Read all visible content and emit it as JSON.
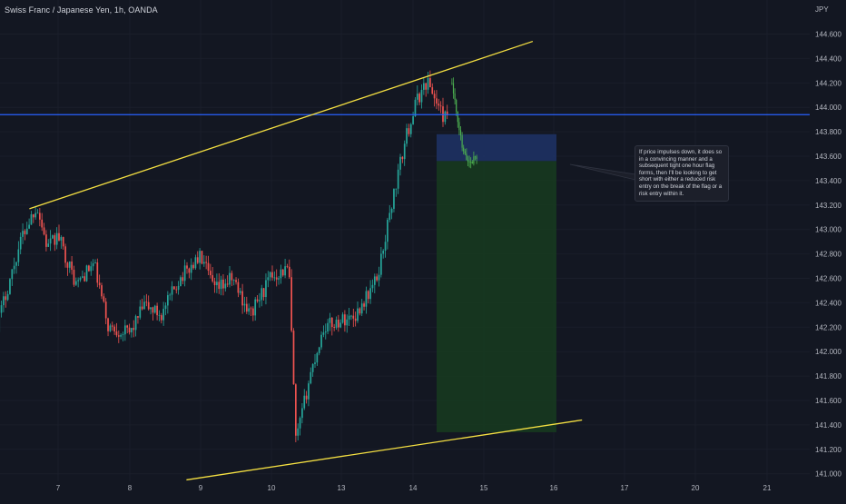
{
  "header": {
    "title": "Swiss Franc / Japanese Yen, 1h, OANDA",
    "currency": "JPY"
  },
  "price_axis": {
    "labels": [
      "144.600",
      "144.400",
      "144.200",
      "144.000",
      "143.800",
      "143.600",
      "143.400",
      "143.200",
      "143.000",
      "142.800",
      "142.600",
      "142.400",
      "142.200",
      "142.000",
      "141.800",
      "141.600",
      "141.400",
      "141.200",
      "141.000"
    ]
  },
  "time_axis": {
    "labels": [
      "7",
      "8",
      "9",
      "10",
      "13",
      "14",
      "15",
      "16",
      "17",
      "20",
      "21"
    ]
  },
  "note": {
    "text": "If price impulses down, it does so in a convincing manner and a subsequent tight one hour flag forms, then I'll be looking to get short with either a reduced risk entry on the break of the flag or a risk entry within it."
  },
  "colors": {
    "background": "#131722",
    "up_candle": "#26a69a",
    "down_candle": "#ef5350",
    "projection_candle": "#4caf50",
    "trendline": "#f5e042",
    "horizontal_level": "#2962ff",
    "stop_zone": "#1e3366",
    "target_zone": "#17391f"
  },
  "chart_data": {
    "type": "candlestick",
    "title": "Swiss Franc / Japanese Yen, 1h, OANDA",
    "x_unit": "day of month",
    "y_unit": "JPY",
    "ylim": [
      140.92,
      144.74
    ],
    "horizontal_level": 143.94,
    "trendlines": [
      {
        "name": "upper",
        "points": [
          [
            6.6,
            143.17
          ],
          [
            13.7,
            144.54
          ]
        ]
      },
      {
        "name": "lower",
        "points": [
          [
            8.8,
            140.95
          ],
          [
            14.4,
            141.44
          ]
        ]
      }
    ],
    "position": {
      "type": "short",
      "entry": 143.56,
      "stop": 143.78,
      "target": 141.34
    },
    "path": [
      {
        "x": 6.15,
        "y": 142.22
      },
      {
        "x": 6.5,
        "y": 142.95
      },
      {
        "x": 6.7,
        "y": 143.2
      },
      {
        "x": 6.85,
        "y": 142.85
      },
      {
        "x": 7.0,
        "y": 142.95
      },
      {
        "x": 7.25,
        "y": 142.55
      },
      {
        "x": 7.5,
        "y": 142.72
      },
      {
        "x": 7.7,
        "y": 142.2
      },
      {
        "x": 8.0,
        "y": 142.15
      },
      {
        "x": 8.2,
        "y": 142.38
      },
      {
        "x": 8.45,
        "y": 142.3
      },
      {
        "x": 8.7,
        "y": 142.6
      },
      {
        "x": 9.0,
        "y": 142.78
      },
      {
        "x": 9.2,
        "y": 142.5
      },
      {
        "x": 9.45,
        "y": 142.6
      },
      {
        "x": 9.7,
        "y": 142.3
      },
      {
        "x": 10.0,
        "y": 142.62
      },
      {
        "x": 10.25,
        "y": 142.68
      },
      {
        "x": 10.35,
        "y": 141.25
      },
      {
        "x": 10.55,
        "y": 141.8
      },
      {
        "x": 10.75,
        "y": 142.2
      },
      {
        "x": 11.2,
        "y": 142.3
      },
      {
        "x": 11.5,
        "y": 142.6
      },
      {
        "x": 11.7,
        "y": 143.2
      },
      {
        "x": 11.9,
        "y": 143.75
      },
      {
        "x": 12.05,
        "y": 144.05
      },
      {
        "x": 12.2,
        "y": 144.22
      },
      {
        "x": 12.4,
        "y": 143.95
      },
      {
        "x": 12.5,
        "y": 143.88
      }
    ],
    "projection": [
      {
        "x": 12.55,
        "y": 144.2
      },
      {
        "x": 12.62,
        "y": 143.9
      },
      {
        "x": 12.72,
        "y": 143.6
      },
      {
        "x": 12.8,
        "y": 143.55
      },
      {
        "x": 12.9,
        "y": 143.6
      }
    ]
  }
}
